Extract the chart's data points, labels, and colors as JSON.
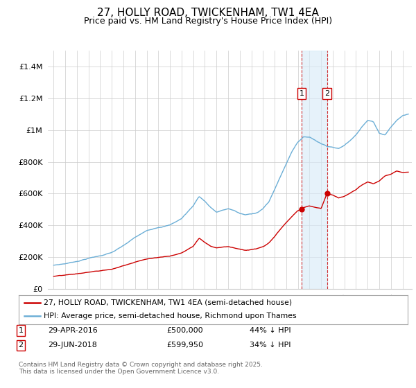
{
  "title": "27, HOLLY ROAD, TWICKENHAM, TW1 4EA",
  "subtitle": "Price paid vs. HM Land Registry's House Price Index (HPI)",
  "legend_line1": "27, HOLLY ROAD, TWICKENHAM, TW1 4EA (semi-detached house)",
  "legend_line2": "HPI: Average price, semi-detached house, Richmond upon Thames",
  "transaction1_date": "29-APR-2016",
  "transaction1_price": "£500,000",
  "transaction1_hpi": "44% ↓ HPI",
  "transaction2_date": "29-JUN-2018",
  "transaction2_price": "£599,950",
  "transaction2_hpi": "34% ↓ HPI",
  "marker1_x": 2016.33,
  "marker2_x": 2018.5,
  "sale1_y": 500000,
  "sale2_y": 599950,
  "footer": "Contains HM Land Registry data © Crown copyright and database right 2025.\nThis data is licensed under the Open Government Licence v3.0.",
  "hpi_color": "#6baed6",
  "price_color": "#cc0000",
  "marker_color": "#cc0000",
  "shade_color": "#d6eaf8",
  "ylim": [
    0,
    1500000
  ],
  "xlim_start": 1994.5,
  "xlim_end": 2025.8,
  "background_color": "#ffffff",
  "grid_color": "#cccccc",
  "ytick_vals": [
    0,
    200000,
    400000,
    600000,
    800000,
    1000000,
    1200000,
    1400000
  ],
  "ytick_labels": [
    "£0",
    "£200K",
    "£400K",
    "£600K",
    "£800K",
    "£1M",
    "£1.2M",
    "£1.4M"
  ],
  "xtick_start": 1995,
  "xtick_end": 2025
}
